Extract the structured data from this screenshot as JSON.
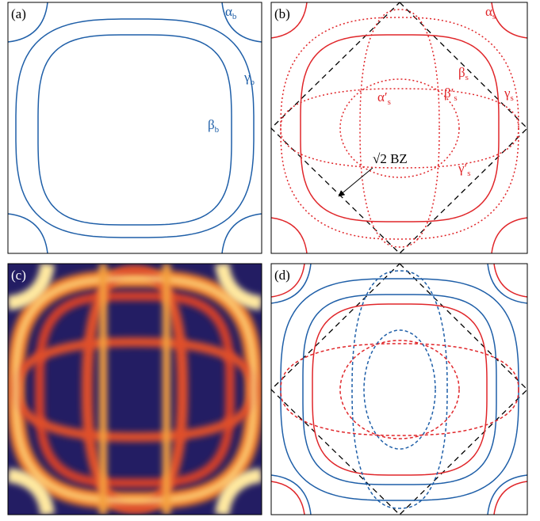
{
  "panels": [
    {
      "label": "(a)",
      "annotations": [
        {
          "symbol": "α",
          "sub": "b"
        },
        {
          "symbol": "γ",
          "sub": "b"
        },
        {
          "symbol": "β",
          "sub": "b"
        }
      ]
    },
    {
      "label": "(b)",
      "annotations": [
        {
          "symbol": "α",
          "sub": "s"
        },
        {
          "symbol": "β",
          "sub": "s"
        },
        {
          "symbol": "β′",
          "sub": "s"
        },
        {
          "symbol": "γ",
          "sub": "s"
        },
        {
          "symbol": "α′",
          "sub": "s"
        },
        {
          "symbol": "γ′",
          "sub": "s"
        }
      ],
      "note": "√2 BZ"
    },
    {
      "label": "(c)"
    },
    {
      "label": "(d)"
    }
  ]
}
